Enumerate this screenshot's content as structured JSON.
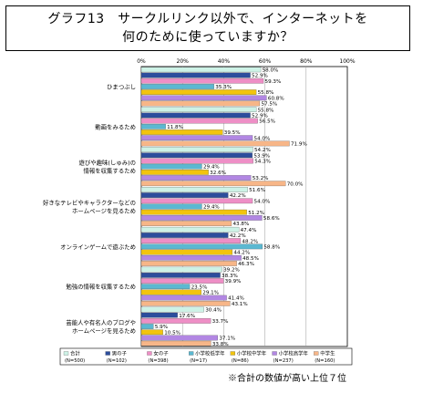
{
  "title": {
    "line1": "グラフ13　サークルリンク以外で、インターネットを",
    "line2": "何のために使っていますか？"
  },
  "note": "※合計の数値が高い上位７位",
  "chart_data": {
    "type": "bar",
    "orientation": "horizontal",
    "xlim": [
      0,
      100
    ],
    "x_ticks": [
      "0%",
      "20%",
      "40%",
      "60%",
      "80%",
      "100%"
    ],
    "categories": [
      "ひまつぶし",
      "動画をみるため",
      "遊びや趣味(しゅみ)の\n情報を収集するため",
      "好きなテレビやキャラクターなどの\nホームページを見るため",
      "オンラインゲームで遊ぶため",
      "勉強の情報を収集するため",
      "芸能人や有名人のブログや\nホームページを見るため"
    ],
    "series": [
      {
        "name": "合計",
        "n": "(N=500)",
        "color": "#cdf2e6",
        "values": [
          58.0,
          55.8,
          54.2,
          51.6,
          47.4,
          39.2,
          30.4
        ]
      },
      {
        "name": "男の子",
        "n": "(N=102)",
        "color": "#2c4d9c",
        "values": [
          52.9,
          52.9,
          53.9,
          42.2,
          42.2,
          38.3,
          17.6
        ]
      },
      {
        "name": "女の子",
        "n": "(N=398)",
        "color": "#ee8fc6",
        "values": [
          59.3,
          56.5,
          54.3,
          54.0,
          48.2,
          39.9,
          33.7
        ]
      },
      {
        "name": "小学校低学年",
        "n": "(N=17)",
        "color": "#5bb8d1",
        "values": [
          35.3,
          11.8,
          29.4,
          29.4,
          58.8,
          23.5,
          5.9
        ]
      },
      {
        "name": "小学校中学年",
        "n": "(N=86)",
        "color": "#f2c40e",
        "values": [
          55.8,
          39.5,
          32.6,
          51.2,
          44.2,
          29.1,
          10.5
        ]
      },
      {
        "name": "小学校高学年",
        "n": "(N=237)",
        "color": "#b287e3",
        "values": [
          60.8,
          54.0,
          53.2,
          58.6,
          48.5,
          41.4,
          37.1
        ]
      },
      {
        "name": "中学生",
        "n": "(N=160)",
        "color": "#f7b688",
        "values": [
          57.5,
          71.9,
          70.0,
          43.8,
          46.3,
          43.1,
          33.8
        ]
      }
    ]
  }
}
